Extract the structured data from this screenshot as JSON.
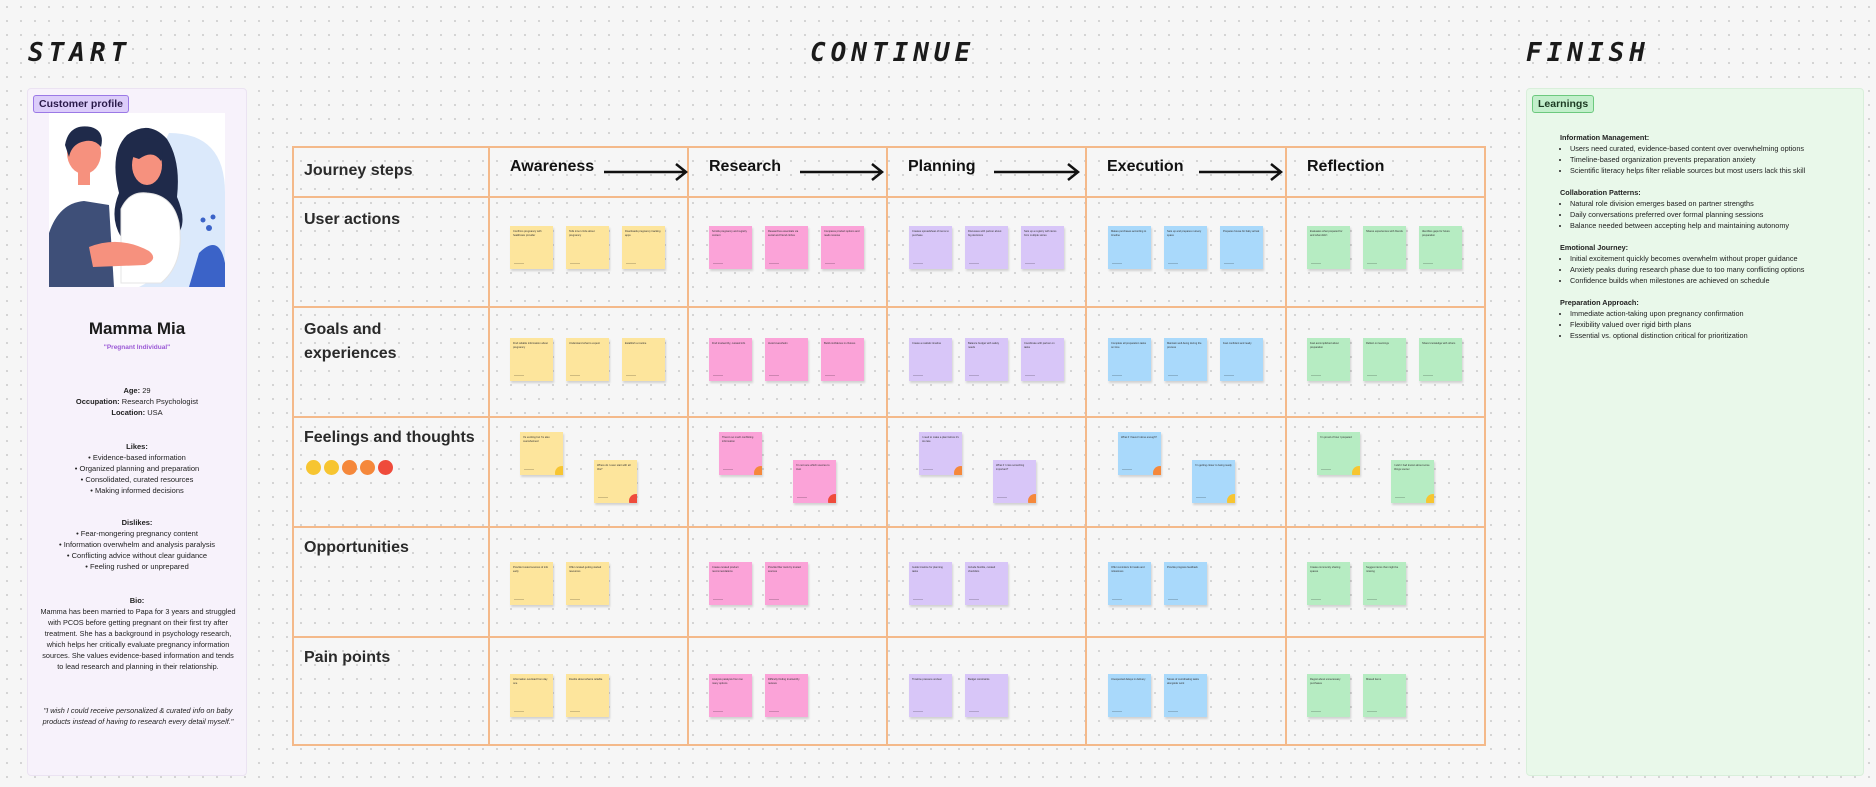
{
  "sections": {
    "start": "START",
    "continue": "CONTINUE",
    "finish": "FINISH"
  },
  "profile": {
    "tag": "Customer profile",
    "name": "Mamma Mia",
    "role": "\"Pregnant Individual\"",
    "age_label": "Age:",
    "age": "29",
    "occupation_label": "Occupation:",
    "occupation": "Research Psychologist",
    "location_label": "Location:",
    "location": "USA",
    "likes_title": "Likes:",
    "likes": [
      "Evidence-based information",
      "Organized planning and preparation",
      "Consolidated, curated resources",
      "Making informed decisions"
    ],
    "dislikes_title": "Dislikes:",
    "dislikes": [
      "Fear-mongering pregnancy content",
      "Information overwhelm and analysis paralysis",
      "Conflicting advice without clear guidance",
      "Feeling rushed or unprepared"
    ],
    "bio_title": "Bio:",
    "bio": "Mamma has been married to Papa for 3 years and struggled with PCOS before getting pregnant on their first try after treatment. She has a background in psychology research, which helps her critically evaluate pregnancy information sources. She values evidence-based information and tends to lead research and planning in their relationship.",
    "quote": "\"I wish I could receive personalized & curated info on baby products instead of having to research every detail myself.\""
  },
  "journey": {
    "corner": "Journey steps",
    "stages": [
      "Awareness",
      "Research",
      "Planning",
      "Execution",
      "Reflection"
    ],
    "rows": [
      "User actions",
      "Goals and experiences",
      "Feelings and thoughts",
      "Opportunities",
      "Pain points"
    ],
    "stage_colors": [
      "#fde59c",
      "#fba3d8",
      "#d8c6f8",
      "#a9d9fb",
      "#b6ecc2"
    ],
    "emoji_scale": [
      "#f7c531",
      "#f7c531",
      "#f5883b",
      "#f5883b",
      "#ef4b3b"
    ],
    "notes": {
      "user_actions": [
        [
          "Confirms pregnancy with healthcare provider",
          "Tells inner circle about pregnancy",
          "Downloads pregnancy tracking apps"
        ],
        [
          "Scrolls pregnancy and registry content",
          "Researches essentials via social and friend circles",
          "Compares product options and reads reviews"
        ],
        [
          "Creates spreadsheet of items to purchase",
          "Discusses with partner about big decisions",
          "Sets up a registry with items from multiple stores"
        ],
        [
          "Makes purchases according to timeline",
          "Sets up and prepares nursery space",
          "Prepares house for baby arrival"
        ],
        [
          "Evaluates what prepared for and what didn't",
          "Shares experiences with friends",
          "Identifies gaps for future preparation"
        ]
      ],
      "goals": [
        [
          "Find reliable information about pregnancy",
          "Understand what to expect",
          "Establish a routine"
        ],
        [
          "Find trustworthy, curated info",
          "Avoid overwhelm",
          "Build confidence in choices"
        ],
        [
          "Create a realistic timeline",
          "Balance budget with safety needs",
          "Coordinate with partner on tasks"
        ],
        [
          "Complete all preparation tasks on time",
          "Maintain well-being during the process",
          "Feel confident and ready"
        ],
        [
          "Feel accomplished about preparation",
          "Reflect on learnings",
          "Share knowledge with others"
        ]
      ],
      "opportunities": [
        [
          "Provide trusted sources of info early",
          "Offer curated getting started resources"
        ],
        [
          "Create curated product recommendations",
          "Provide filter tools by trusted sources"
        ],
        [
          "Guide timeline for planning tasks",
          "Include flexible, curated checklists"
        ],
        [
          "Offer reminders for tasks and milestones",
          "Provide progress feedback"
        ],
        [
          "Create community sharing spaces",
          "Suggest items that might be missing"
        ]
      ],
      "pain": [
        [
          "Information overload from day one",
          "Doubts about what is reliable"
        ],
        [
          "Analysis paralysis from too many options",
          "Difficulty finding trustworthy reviews"
        ],
        [
          "Timeline pressure unclear",
          "Budget constraints"
        ],
        [
          "Unexpected delays in delivery",
          "Stress of coordinating tasks alongside work"
        ],
        [
          "Regret about unnecessary purchases",
          "Missed items"
        ]
      ],
      "feelings": [
        [
          "It's exciting but I'm also overwhelmed",
          "Where do I even start with all this?"
        ],
        [
          "There's so much conflicting information",
          "I'm not sure which sources to trust"
        ],
        [
          "I need to make a plan before it's too late",
          "What if I miss something important?"
        ],
        [
          "What if I haven't done enough?",
          "I'm getting closer to being ready"
        ],
        [
          "I'm proud of how I prepared",
          "I wish I had known about some things sooner"
        ]
      ]
    }
  },
  "learnings": {
    "tag": "Learnings",
    "groups": [
      {
        "title": "Information Management:",
        "items": [
          "Users need curated, evidence-based content over overwhelming options",
          "Timeline-based organization prevents preparation anxiety",
          "Scientific literacy helps filter reliable sources but most users lack this skill"
        ]
      },
      {
        "title": "Collaboration Patterns:",
        "items": [
          "Natural role division emerges based on partner strengths",
          "Daily conversations preferred over formal planning sessions",
          "Balance needed between accepting help and maintaining autonomy"
        ]
      },
      {
        "title": "Emotional Journey:",
        "items": [
          "Initial excitement quickly becomes overwhelm without proper guidance",
          "Anxiety peaks during research phase due to too many conflicting options",
          "Confidence builds when milestones are achieved on schedule"
        ]
      },
      {
        "title": "Preparation Approach:",
        "items": [
          "Immediate action-taking upon pregnancy confirmation",
          "Flexibility valued over rigid birth plans",
          "Essential vs. optional distinction critical for prioritization"
        ]
      }
    ]
  }
}
